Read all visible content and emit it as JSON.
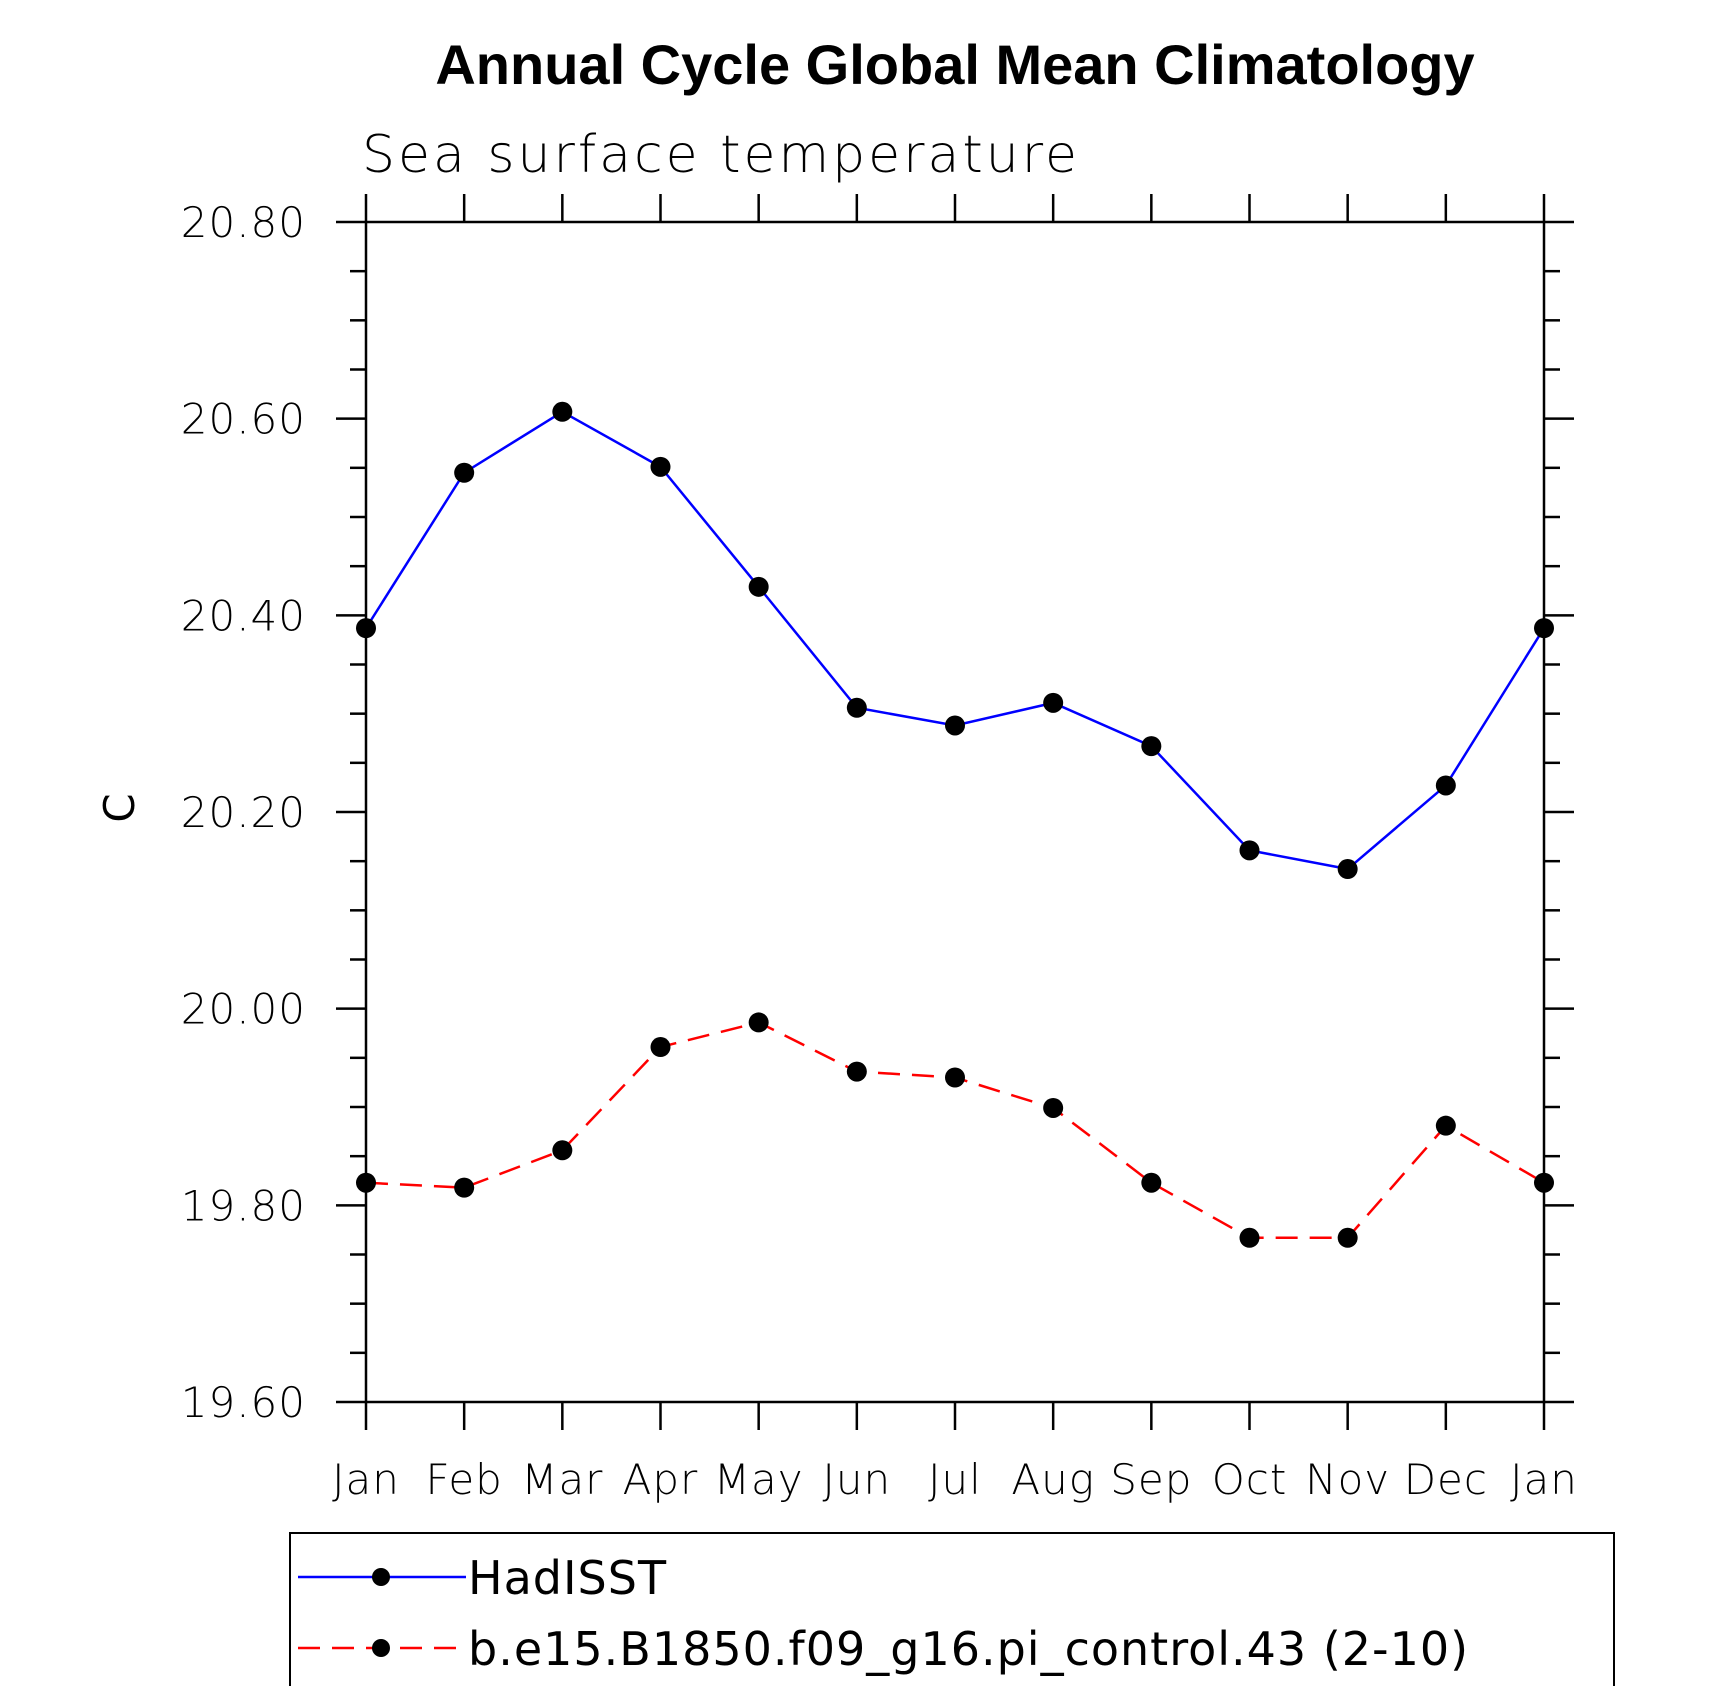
{
  "chart_data": {
    "type": "line",
    "title": "Annual Cycle Global Mean Climatology",
    "subtitle": "Sea surface temperature",
    "xlabel": "",
    "ylabel": "C",
    "categories": [
      "Jan",
      "Feb",
      "Mar",
      "Apr",
      "May",
      "Jun",
      "Jul",
      "Aug",
      "Sep",
      "Oct",
      "Nov",
      "Dec",
      "Jan"
    ],
    "ylim": [
      19.6,
      20.8
    ],
    "yticks": [
      "19.60",
      "19.80",
      "20.00",
      "20.20",
      "20.40",
      "20.60",
      "20.80"
    ],
    "ytick_values": [
      19.6,
      19.8,
      20.0,
      20.2,
      20.4,
      20.6,
      20.8
    ],
    "grid": false,
    "legend_position": "bottom",
    "series": [
      {
        "name": "HadISST",
        "color": "#0000ff",
        "line_style": "solid",
        "marker": "filled-circle",
        "values": [
          20.387,
          20.545,
          20.607,
          20.551,
          20.429,
          20.306,
          20.288,
          20.311,
          20.267,
          20.161,
          20.142,
          20.227,
          20.387
        ]
      },
      {
        "name": "b.e15.B1850.f09_g16.pi_control.43 (2-10)",
        "color": "#ff0000",
        "line_style": "dashed",
        "marker": "filled-circle",
        "values": [
          19.823,
          19.818,
          19.856,
          19.961,
          19.986,
          19.936,
          19.93,
          19.899,
          19.823,
          19.767,
          19.767,
          19.881,
          19.823
        ]
      }
    ]
  }
}
